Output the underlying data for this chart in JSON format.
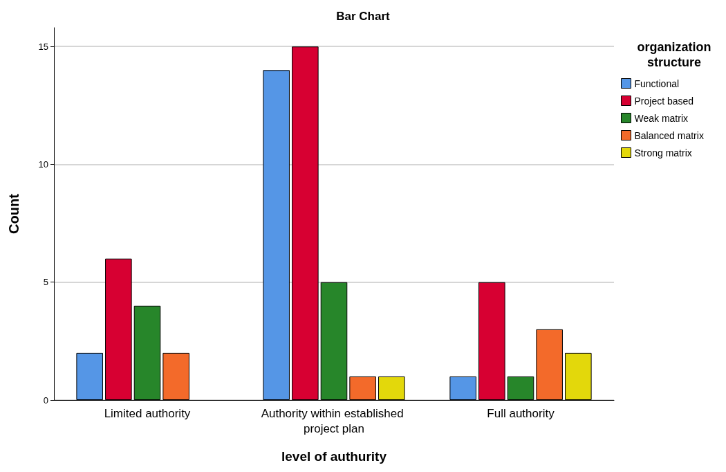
{
  "chart_data": {
    "type": "bar",
    "title": "Bar Chart",
    "xlabel": "level of authurity",
    "ylabel": "Count",
    "legend_title": "organization\nstructure",
    "categories": [
      "Limited authority",
      "Authority within established project plan",
      "Full authority"
    ],
    "series": [
      {
        "name": "Functional",
        "color": "#5596e6",
        "values": [
          2,
          14,
          1
        ]
      },
      {
        "name": "Project based",
        "color": "#d70032",
        "values": [
          6,
          15,
          5
        ]
      },
      {
        "name": "Weak matrix",
        "color": "#27862a",
        "values": [
          4,
          5,
          1
        ]
      },
      {
        "name": "Balanced matrix",
        "color": "#f36a2a",
        "values": [
          2,
          1,
          3
        ]
      },
      {
        "name": "Strong matrix",
        "color": "#e3d80b",
        "values": [
          null,
          1,
          2
        ]
      }
    ],
    "ylim": [
      0,
      15.8
    ],
    "yticks": [
      0,
      5,
      10,
      15
    ],
    "grid": "y",
    "legend": "top right"
  }
}
